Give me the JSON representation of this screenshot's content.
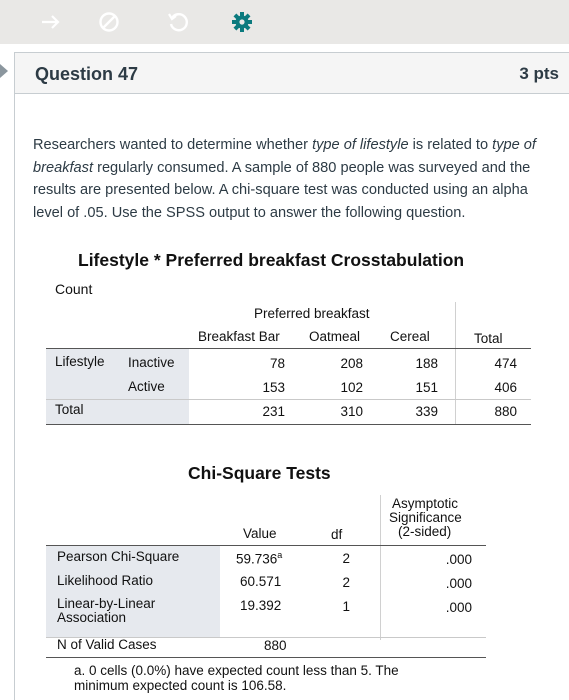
{
  "question": {
    "title": "Question 47",
    "points": "3 pts",
    "text": {
      "p1": "Researchers wanted to determine whether ",
      "em1": "type of lifestyle",
      "p2": " is related to ",
      "em2": "type of breakfast",
      "p3": " regularly consumed. A sample of 880 people was surveyed and the results are presented below. A chi-square test was conducted using an alpha level of .05. Use the SPSS output to answer the following question."
    }
  },
  "toolbar": {
    "icons": [
      "arrow-icon",
      "cancel-icon",
      "refresh-icon",
      "gear-icon"
    ]
  },
  "crosstab": {
    "title": "Lifestyle * Preferred breakfast Crosstabulation",
    "count_label": "Count",
    "group_header": "Preferred breakfast",
    "columns": [
      "Breakfast Bar",
      "Oatmeal",
      "Cereal",
      "Total"
    ],
    "row_var": "Lifestyle",
    "rows": [
      {
        "label": "Inactive",
        "values": [
          "78",
          "208",
          "188",
          "474"
        ]
      },
      {
        "label": "Active",
        "values": [
          "153",
          "102",
          "151",
          "406"
        ]
      }
    ],
    "total": {
      "label": "Total",
      "values": [
        "231",
        "310",
        "339",
        "880"
      ]
    }
  },
  "chisq": {
    "title": "Chi-Square Tests",
    "headers": {
      "value": "Value",
      "df": "df",
      "sig_l1": "Asymptotic",
      "sig_l2": "Significance",
      "sig_l3": "(2-sided)"
    },
    "rows": [
      {
        "label": "Pearson Chi-Square",
        "value": "59.736",
        "sup": "a",
        "df": "2",
        "sig": ".000"
      },
      {
        "label": "Likelihood Ratio",
        "value": "60.571",
        "df": "2",
        "sig": ".000"
      },
      {
        "label_l1": "Linear-by-Linear",
        "label_l2": "Association",
        "value": "19.392",
        "df": "1",
        "sig": ".000"
      }
    ],
    "n_label": "N of Valid Cases",
    "n_value": "880",
    "footnote": "a. 0 cells (0.0%) have expected count less than 5. The minimum expected count is 106.58."
  }
}
